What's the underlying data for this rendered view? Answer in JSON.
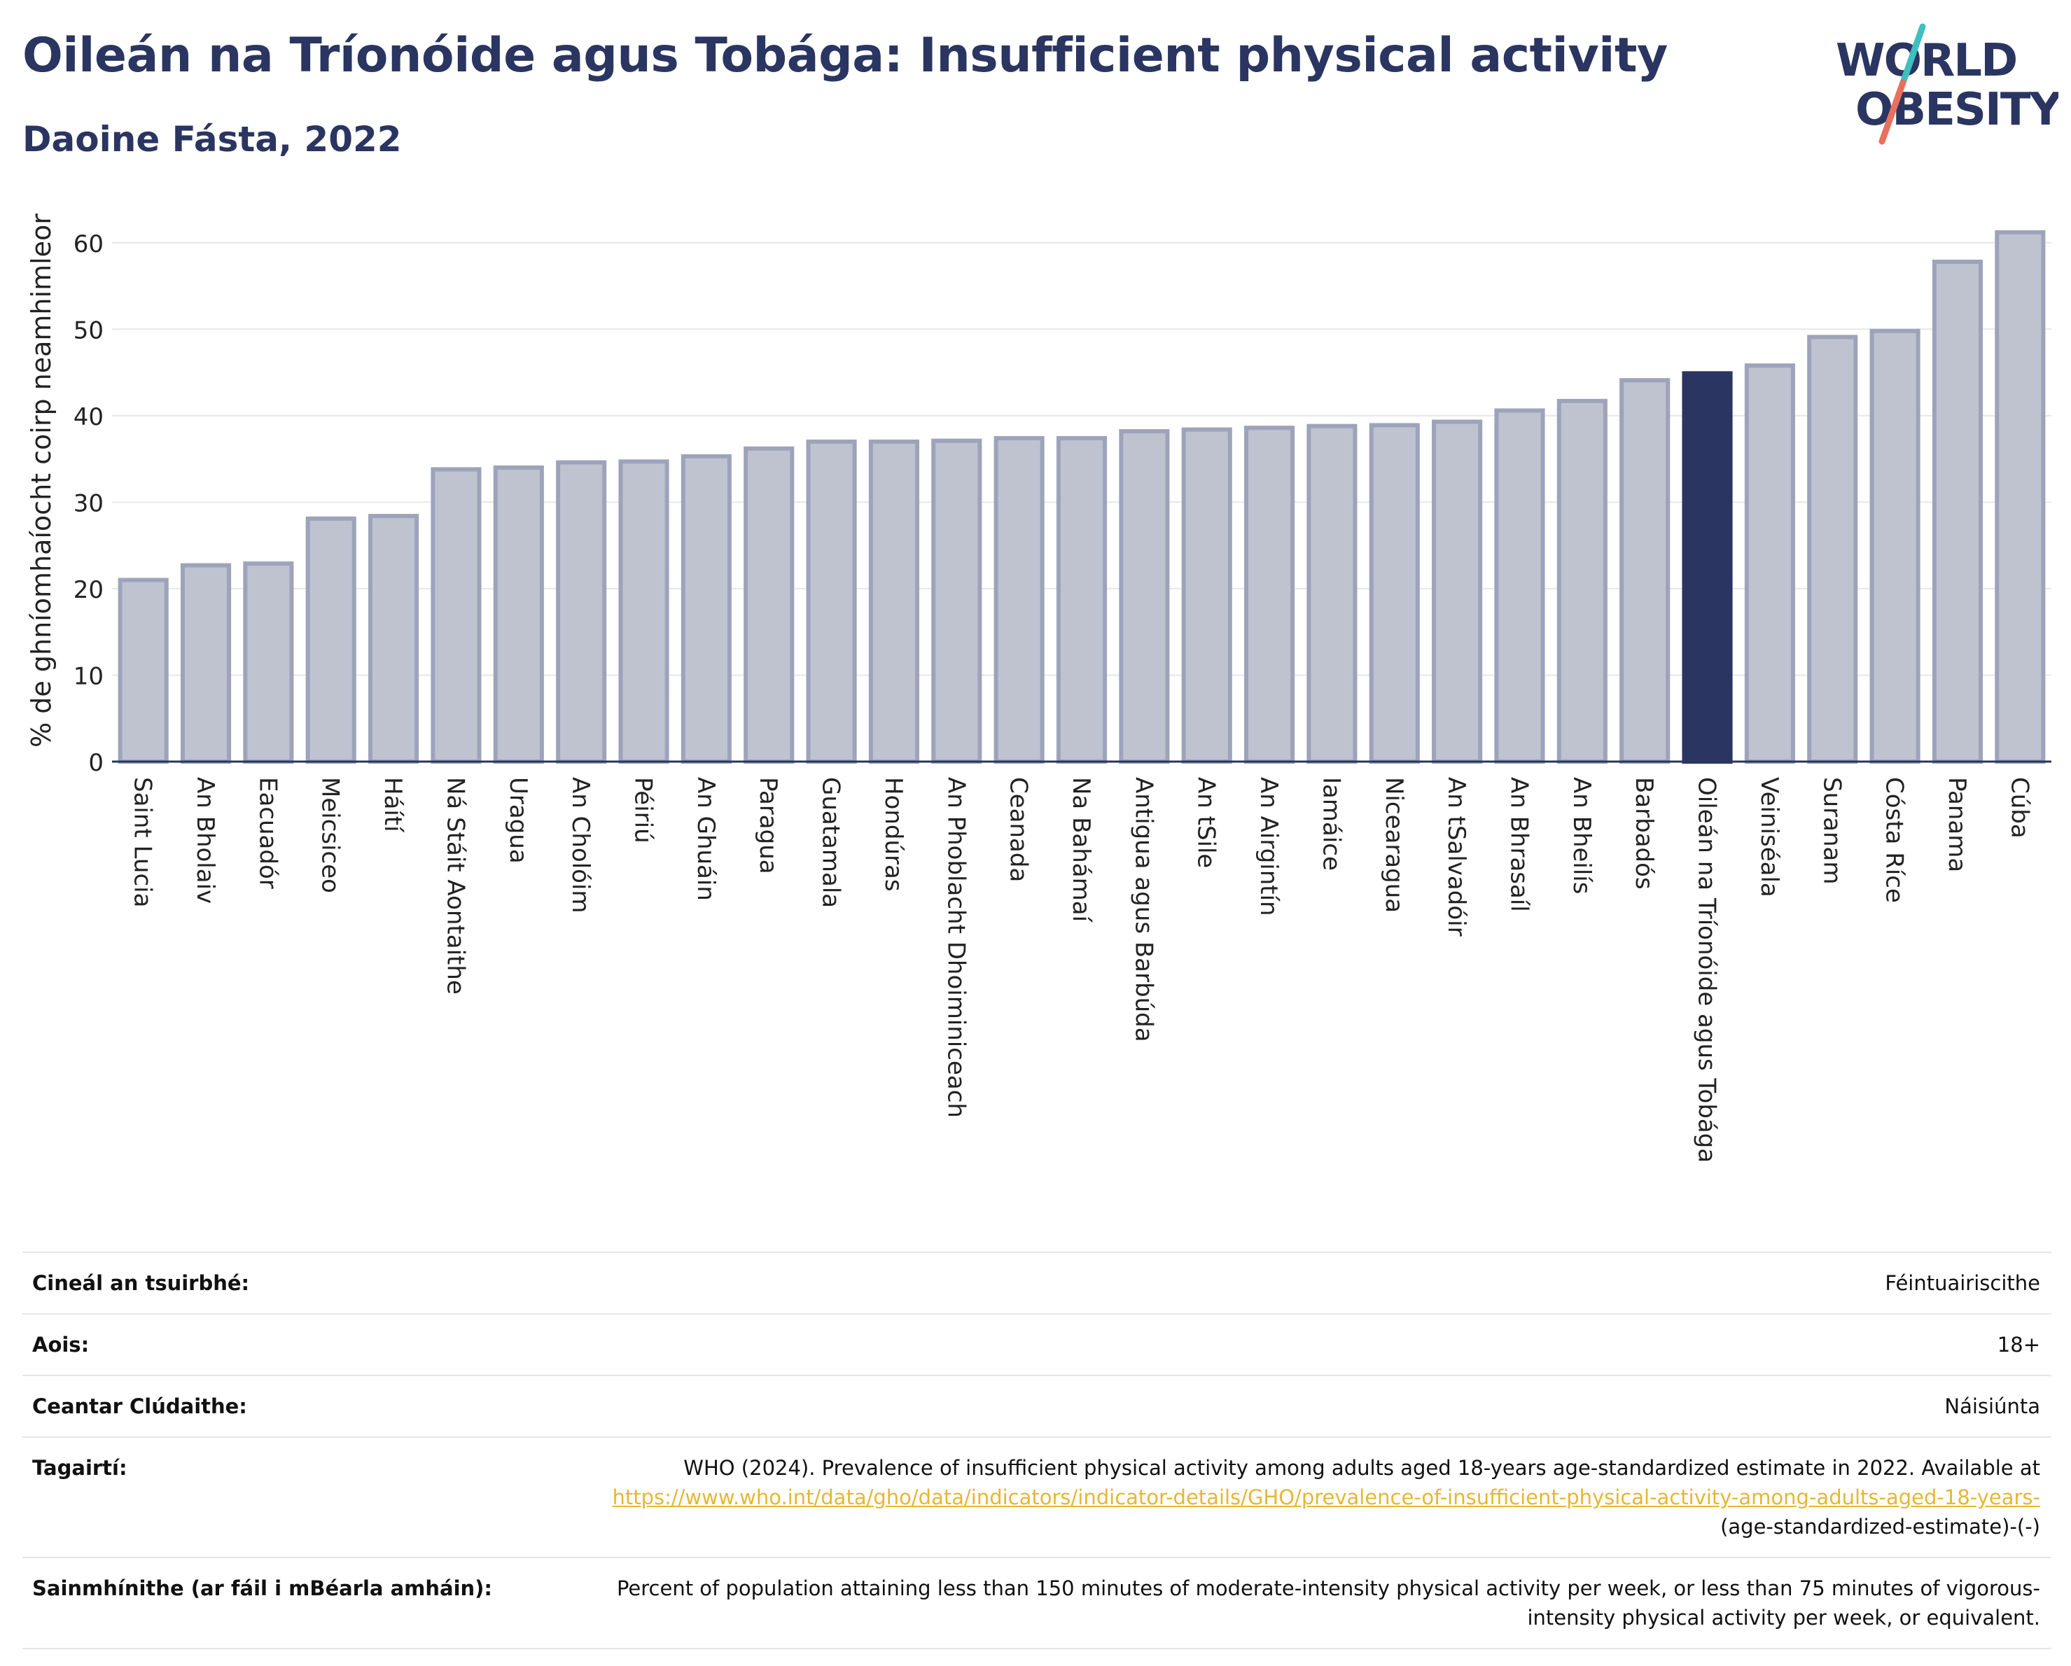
{
  "title": "Oileán na Tríonóide agus Tobága: Insufficient physical activity",
  "subtitle": "Daoine Fásta, 2022",
  "logo": {
    "line1": "WORLD",
    "line2": "OBESITY"
  },
  "colors": {
    "bar": "#bfc3d0",
    "bar_edge": "#9da3ba",
    "highlight": "#2a3561",
    "text": "#2a3561",
    "link": "#e5b733"
  },
  "chart_data": {
    "type": "bar",
    "ylabel": "% de ghníomhaíocht coirp neamhimleor",
    "ylim": [
      0,
      65
    ],
    "yticks": [
      0,
      10,
      20,
      30,
      40,
      50,
      60
    ],
    "grid": true,
    "highlight": "Oileán na Tríonóide agus Tobága",
    "categories": [
      "Saint Lucia",
      "An Bholaiv",
      "Eacuadór",
      "Meicsiceo",
      "Háítí",
      "Ná Stáit Aontaithe",
      "Uragua",
      "An Cholóim",
      "Péiriú",
      "An Ghuáin",
      "Paragua",
      "Guatamala",
      "Hondúras",
      "An Phoblacht Dhoiminiceach",
      "Ceanada",
      "Na Bahámaí",
      "Antigua agus Barbúda",
      "An tSile",
      "An Airgintín",
      "Iamáice",
      "Nicearagua",
      "An tSalvadóir",
      "An Bhrasaíl",
      "An Bheilís",
      "Barbadós",
      "Oileán na Tríonóide agus Tobága",
      "Veiniséala",
      "Suranam",
      "Cósta Ríce",
      "Panama",
      "Cúba"
    ],
    "values": [
      21.0,
      22.7,
      22.9,
      28.1,
      28.4,
      33.8,
      34.0,
      34.6,
      34.7,
      35.3,
      36.2,
      37.0,
      37.0,
      37.1,
      37.4,
      37.4,
      38.2,
      38.4,
      38.6,
      38.8,
      38.9,
      39.3,
      40.6,
      41.7,
      44.1,
      44.9,
      45.8,
      49.1,
      49.8,
      57.8,
      61.2
    ]
  },
  "info": {
    "survey_type_label": "Cineál an tsuirbhé:",
    "survey_type_value": "Féintuairiscithe",
    "age_label": "Aois:",
    "age_value": "18+",
    "coverage_label": "Ceantar Clúdaithe:",
    "coverage_value": "Náisiúnta",
    "references_label": "Tagairtí:",
    "references_text": "WHO (2024). Prevalence of insufficient physical activity among adults aged 18-years age-standardized estimate in 2022. Available at",
    "references_link": "https://www.who.int/data/gho/data/indicators/indicator-details/GHO/prevalence-of-insufficient-physical-activity-among-adults-aged-18-years-",
    "references_suffix": "(age-standardized-estimate)-(-)",
    "definitions_label": "Sainmhínithe (ar fáil i mBéarla amháin):",
    "definitions_value": "Percent of population attaining less than 150 minutes of moderate-intensity physical activity per week, or less than 75 minutes of vigorous-intensity physical activity per week, or equivalent."
  }
}
